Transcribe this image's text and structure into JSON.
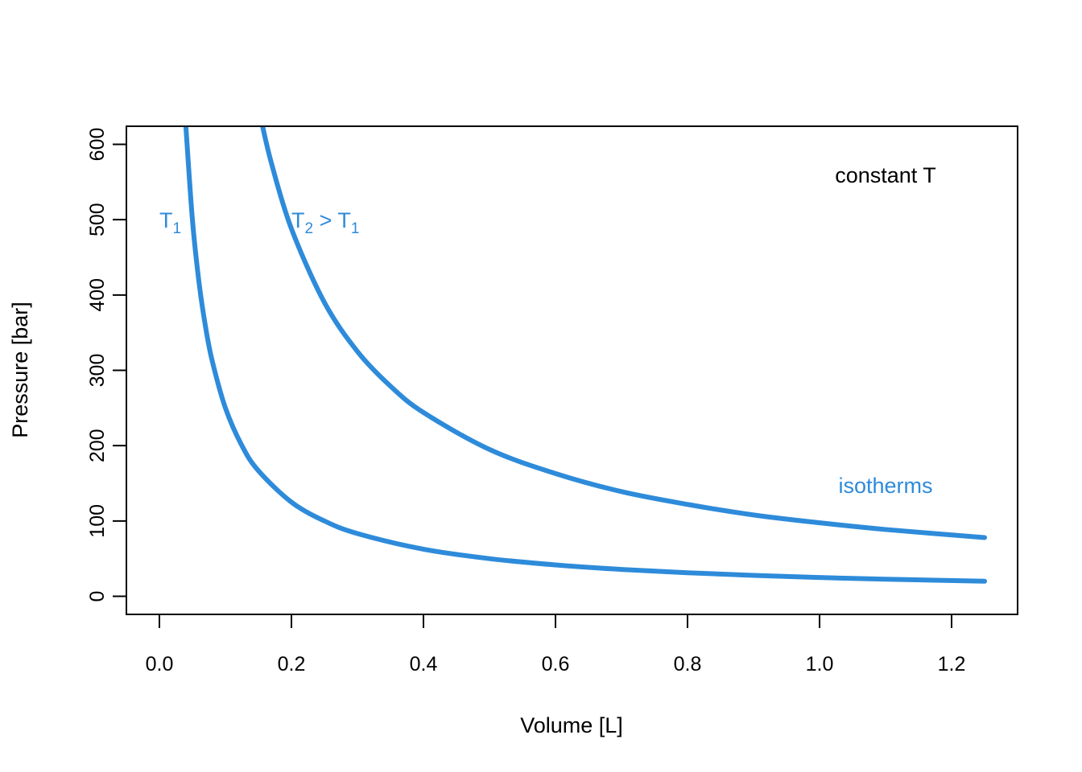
{
  "chart_data": {
    "type": "line",
    "xlabel": "Volume [L]",
    "ylabel": "Pressure [bar]",
    "xlim": [
      -0.05,
      1.3
    ],
    "ylim": [
      -24,
      624
    ],
    "xticks": [
      0.0,
      0.2,
      0.4,
      0.6,
      0.8,
      1.0,
      1.2
    ],
    "xtick_labels": [
      "0.0",
      "0.2",
      "0.4",
      "0.6",
      "0.8",
      "1.0",
      "1.2"
    ],
    "yticks": [
      0,
      100,
      200,
      300,
      400,
      500,
      600
    ],
    "ytick_labels": [
      "0",
      "100",
      "200",
      "300",
      "400",
      "500",
      "600"
    ],
    "grid": false,
    "series": [
      {
        "label_parts": [
          "T",
          "1"
        ],
        "label_at": [
          0.0,
          500
        ],
        "color": "#2E8BDA",
        "x": [
          0.04,
          0.05,
          0.06,
          0.07,
          0.08,
          0.1,
          0.125,
          0.15,
          0.2,
          0.25,
          0.3,
          0.4,
          0.5,
          0.6,
          0.7,
          0.8,
          0.9,
          1.0,
          1.1,
          1.25
        ],
        "y": [
          625,
          500,
          416.7,
          357.1,
          312.5,
          250,
          200,
          166.7,
          125,
          100,
          83.3,
          62.5,
          50,
          41.7,
          35.7,
          31.3,
          27.8,
          25,
          22.7,
          20
        ]
      },
      {
        "label_parts": [
          "T",
          "2",
          " > T",
          "1"
        ],
        "label_at": [
          0.2,
          500
        ],
        "color": "#2E8BDA",
        "x": [
          0.155,
          0.17,
          0.2,
          0.25,
          0.3,
          0.35,
          0.4,
          0.5,
          0.6,
          0.7,
          0.8,
          0.9,
          1.0,
          1.1,
          1.25
        ],
        "y": [
          629,
          574,
          488,
          390,
          325,
          279,
          244,
          195,
          163,
          139,
          122,
          108,
          97.6,
          88.7,
          78
        ]
      }
    ],
    "annotations": [
      {
        "text": "constant T",
        "at": [
          1.1,
          560
        ],
        "color": "#000000"
      },
      {
        "text": "isotherms",
        "at": [
          1.1,
          148
        ],
        "color": "#2E8BDA"
      }
    ]
  }
}
